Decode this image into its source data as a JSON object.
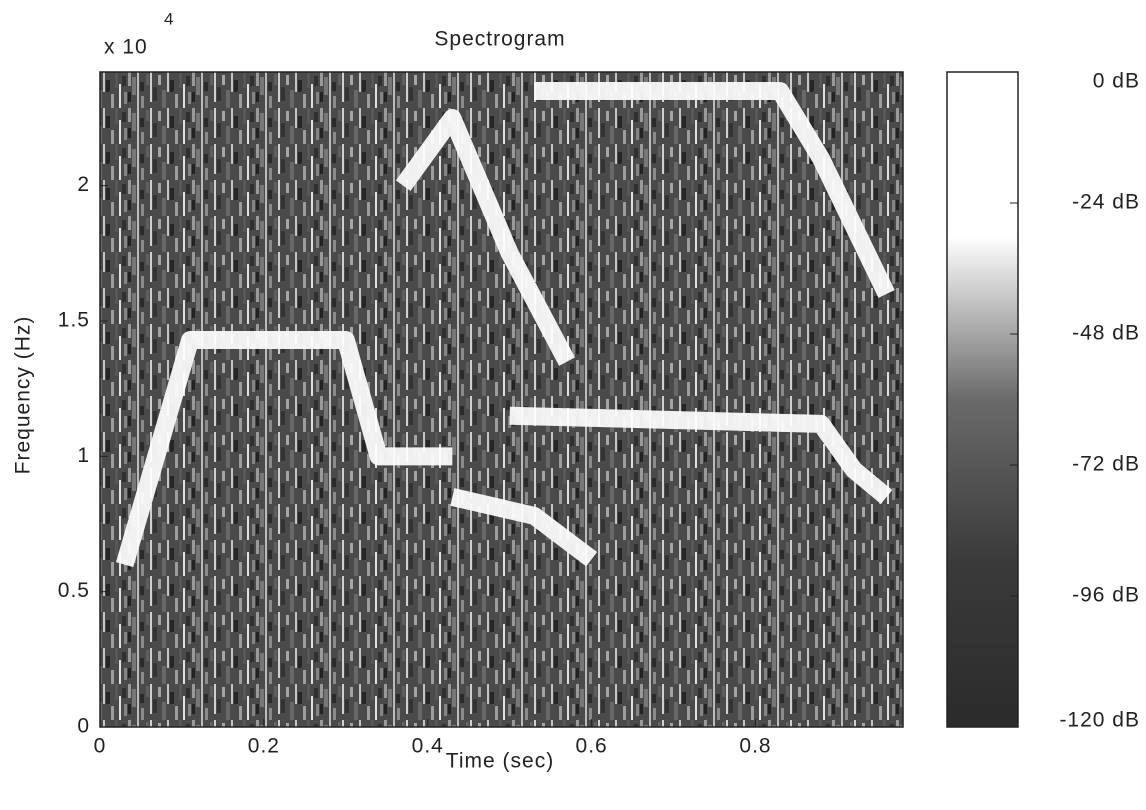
{
  "chart_data": {
    "type": "spectrogram",
    "title": "Spectrogram",
    "x_label": "Time (sec)",
    "y_label": "Frequency (Hz)",
    "y_multiplier": "x 10",
    "y_multiplier_exp": "4",
    "xlim": [
      0,
      0.98
    ],
    "ylim": [
      0,
      2.42
    ],
    "xticks": [
      0,
      0.2,
      0.4,
      0.6,
      0.8
    ],
    "yticks": [
      0,
      0.5,
      1,
      1.5,
      2
    ],
    "series": [
      {
        "color": "#ffffff",
        "x": [
          0.03,
          0.11,
          0.3,
          0.34,
          0.43
        ],
        "values": [
          0.6,
          1.43,
          1.43,
          1.0,
          1.0
        ]
      },
      {
        "color": "#ffffff",
        "x": [
          0.43,
          0.53,
          0.6
        ],
        "values": [
          0.85,
          0.78,
          0.62
        ]
      },
      {
        "color": "#ffffff",
        "x": [
          0.5,
          0.88,
          0.92,
          0.96
        ],
        "values": [
          1.15,
          1.12,
          0.95,
          0.85
        ]
      },
      {
        "color": "#ffffff",
        "x": [
          0.37,
          0.43,
          0.5,
          0.57
        ],
        "values": [
          2.0,
          2.25,
          1.75,
          1.35
        ]
      },
      {
        "color": "#ffffff",
        "x": [
          0.53,
          0.83,
          0.88,
          0.96
        ],
        "values": [
          2.35,
          2.35,
          2.1,
          1.6
        ]
      }
    ],
    "colorbar": {
      "lim": [
        -120,
        0
      ],
      "ticks": [
        {
          "value": 0,
          "label": "0 dB"
        },
        {
          "value": -24,
          "label": "-24 dB"
        },
        {
          "value": -48,
          "label": "-48 dB"
        },
        {
          "value": -72,
          "label": "-72 dB"
        },
        {
          "value": -96,
          "label": "-96 dB"
        },
        {
          "value": -120,
          "label": "-120 dB"
        }
      ],
      "colors": [
        "#2b2b2b",
        "#3a3a3a",
        "#6a6a6a",
        "#ffffff",
        "#ffffff"
      ]
    }
  }
}
